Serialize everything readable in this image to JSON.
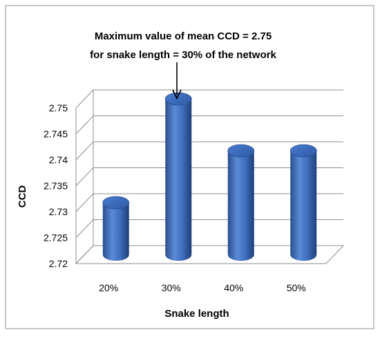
{
  "chart_data": {
    "type": "bar",
    "categories": [
      "20%",
      "30%",
      "40%",
      "50%"
    ],
    "values": [
      2.73,
      2.75,
      2.74,
      2.74
    ],
    "title": "",
    "xlabel": "Snake length",
    "ylabel": "CCD",
    "ylim": [
      2.72,
      2.75
    ],
    "yticks": [
      "2.72",
      "2.725",
      "2.73",
      "2.735",
      "2.74",
      "2.745",
      "2.75"
    ],
    "grid": true,
    "bar_style": "3d-cylinder",
    "bar_color": "#3f6fbf",
    "annotation": {
      "lines": [
        "Maximum value of mean CCD = 2.75",
        "for snake length = 30% of the network"
      ],
      "target_category": "30%"
    }
  }
}
